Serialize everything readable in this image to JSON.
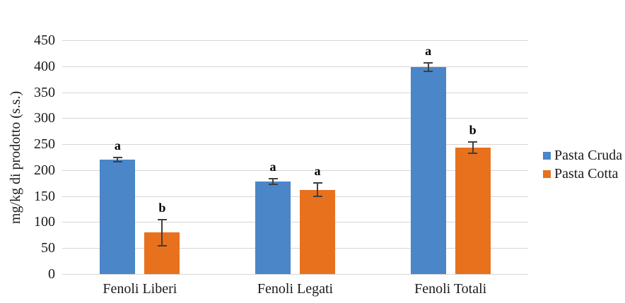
{
  "chart_data": {
    "type": "bar",
    "title": "",
    "xlabel": "",
    "ylabel": "mg/kg di prodotto (s.s.)",
    "categories": [
      "Fenoli Liberi",
      "Fenoli Legati",
      "Fenoli Totali"
    ],
    "series": [
      {
        "name": "Pasta Cruda",
        "color": "#4A86C8",
        "values": [
          220,
          178,
          398
        ],
        "errors": [
          4,
          6,
          8
        ],
        "letters": [
          "a",
          "a",
          "a"
        ]
      },
      {
        "name": "Pasta Cotta",
        "color": "#E8711E",
        "values": [
          80,
          162,
          243
        ],
        "errors": [
          25,
          13,
          11
        ],
        "letters": [
          "b",
          "a",
          "b"
        ]
      }
    ],
    "ylim": [
      0,
      450
    ],
    "ytick_step": 50,
    "grid": true,
    "error_bars": true,
    "legend_position": "right"
  },
  "colors": {
    "gridline": "#d6d6d6",
    "error_bar": "#3f3f3f",
    "axis_text": "#1a1a1a",
    "background": "#ffffff"
  }
}
